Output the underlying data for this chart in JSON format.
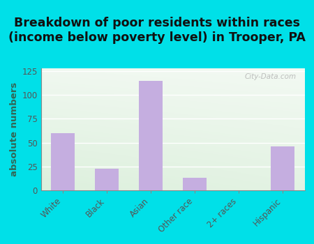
{
  "title": "Breakdown of poor residents within races\n(income below poverty level) in Trooper, PA",
  "ylabel": "absolute numbers",
  "categories": [
    "White",
    "Black",
    "Asian",
    "Other race",
    "2+ races",
    "Hispanic"
  ],
  "values": [
    60,
    23,
    115,
    13,
    0,
    46
  ],
  "bar_color": "#c5aee0",
  "ylim": [
    0,
    128
  ],
  "yticks": [
    0,
    25,
    50,
    75,
    100,
    125
  ],
  "bg_outer": "#00e0e8",
  "grid_color": "#ffffff",
  "watermark": "City-Data.com",
  "title_fontsize": 12.5,
  "ylabel_fontsize": 9.5,
  "tick_fontsize": 8.5,
  "ylabel_color": "#336655",
  "tick_color": "#555555",
  "title_color": "#111111"
}
